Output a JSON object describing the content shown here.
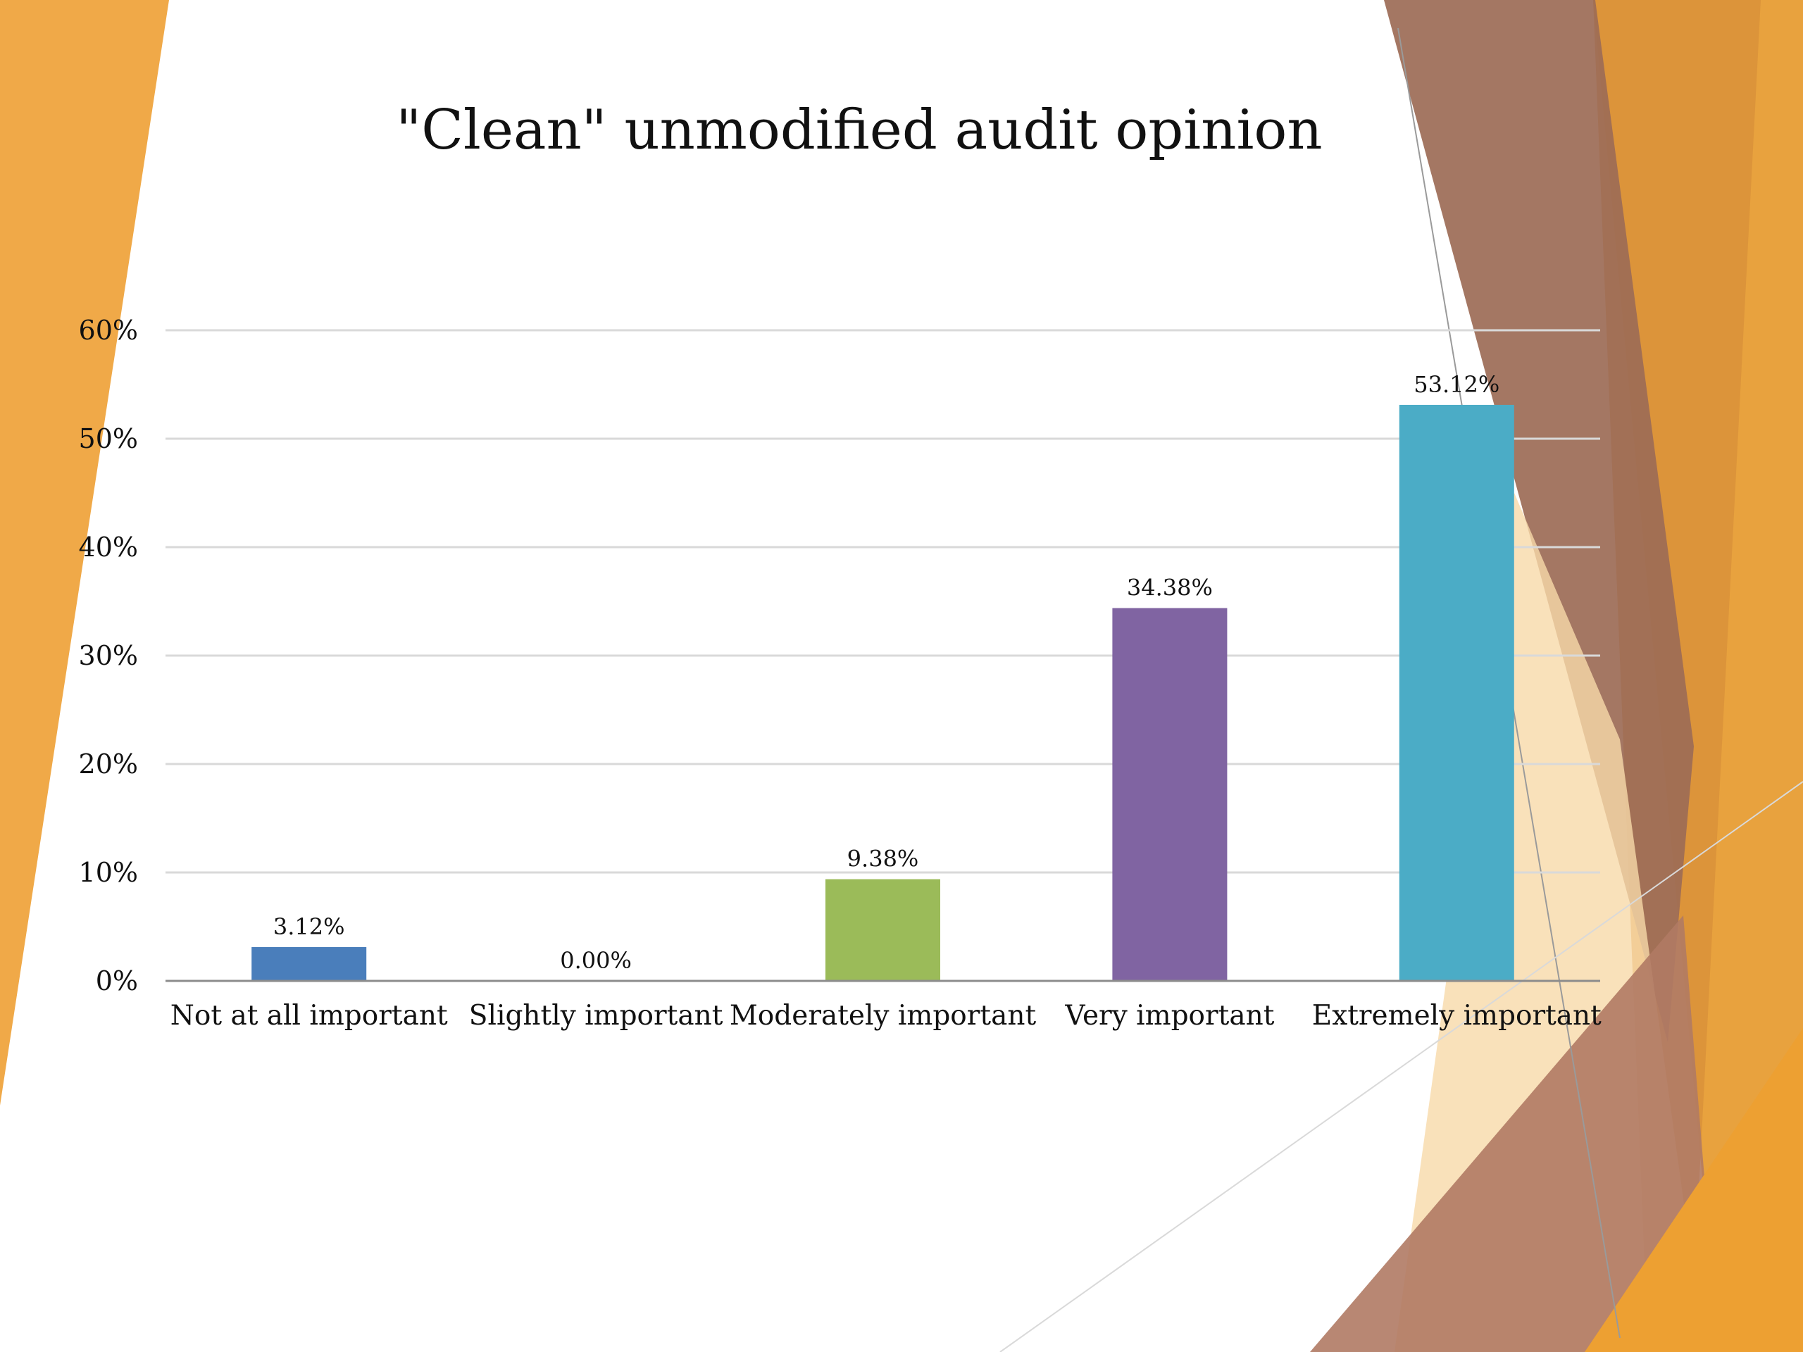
{
  "slide": {
    "decoration_colors": {
      "orange": "#F0A948",
      "dark_orange": "#E29B2F",
      "brown": "#9C6B56",
      "brown_light": "#B7826A",
      "peach": "#F7D9A9"
    }
  },
  "chart_data": {
    "type": "bar",
    "title": "\"Clean\" unmodified audit opinion",
    "xlabel": "",
    "ylabel": "",
    "categories": [
      "Not at all important",
      "Slightly important",
      "Moderately important",
      "Very important",
      "Extremely important"
    ],
    "values": [
      3.12,
      0.0,
      9.38,
      34.38,
      53.12
    ],
    "data_labels": [
      "3.12%",
      "0.00%",
      "9.38%",
      "34.38%",
      "53.12%"
    ],
    "bar_colors": [
      "#4A7EBB",
      "#C0504D",
      "#9BBB59",
      "#8064A2",
      "#4BACC6"
    ],
    "ylim": [
      0,
      60
    ],
    "yticks": [
      0,
      10,
      20,
      30,
      40,
      50,
      60
    ],
    "ytick_labels": [
      "0%",
      "10%",
      "20%",
      "30%",
      "40%",
      "50%",
      "60%"
    ],
    "grid": true,
    "legend": "none"
  }
}
